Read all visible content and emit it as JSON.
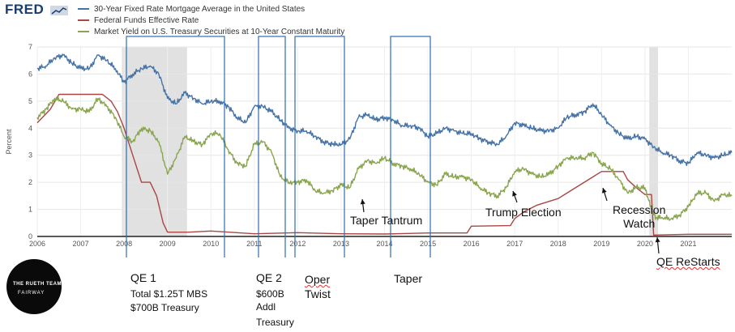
{
  "brand": {
    "name": "FRED"
  },
  "chart_data": {
    "type": "line",
    "xlim": [
      2006,
      2022
    ],
    "ylim": [
      0,
      7
    ],
    "ylabel": "Percent",
    "yticks": [
      0,
      1,
      2,
      3,
      4,
      5,
      6,
      7
    ],
    "xticks": [
      "2006",
      "2007",
      "2008",
      "2009",
      "2010",
      "2011",
      "2012",
      "2013",
      "2014",
      "2015",
      "2016",
      "2017",
      "2018",
      "2019",
      "2020",
      "2021"
    ],
    "recessions": [
      [
        2007.95,
        2009.45
      ],
      [
        2020.1,
        2020.3
      ]
    ],
    "series": [
      {
        "name": "30-Year Fixed Rate Mortgage Average in the United States",
        "color": "#4572a7",
        "x": [
          2006.0,
          2006.2,
          2006.4,
          2006.6,
          2006.8,
          2007.0,
          2007.2,
          2007.4,
          2007.6,
          2007.8,
          2008.0,
          2008.2,
          2008.4,
          2008.6,
          2008.8,
          2009.0,
          2009.2,
          2009.4,
          2009.6,
          2009.8,
          2010.0,
          2010.2,
          2010.4,
          2010.6,
          2010.8,
          2011.0,
          2011.2,
          2011.4,
          2011.6,
          2011.8,
          2012.0,
          2012.2,
          2012.4,
          2012.6,
          2012.8,
          2013.0,
          2013.2,
          2013.4,
          2013.6,
          2013.8,
          2014.0,
          2014.2,
          2014.4,
          2014.6,
          2014.8,
          2015.0,
          2015.2,
          2015.4,
          2015.6,
          2015.8,
          2016.0,
          2016.2,
          2016.4,
          2016.6,
          2016.8,
          2017.0,
          2017.2,
          2017.4,
          2017.6,
          2017.8,
          2018.0,
          2018.2,
          2018.4,
          2018.6,
          2018.8,
          2019.0,
          2019.2,
          2019.4,
          2019.6,
          2019.8,
          2020.0,
          2020.2,
          2020.4,
          2020.6,
          2020.8,
          2021.0,
          2021.2,
          2021.4,
          2021.6,
          2021.8,
          2022.0
        ],
        "y": [
          6.2,
          6.3,
          6.6,
          6.7,
          6.4,
          6.2,
          6.2,
          6.7,
          6.5,
          6.2,
          5.7,
          6.0,
          6.2,
          6.3,
          6.0,
          5.1,
          4.9,
          5.3,
          5.1,
          4.9,
          5.0,
          5.0,
          4.8,
          4.4,
          4.2,
          4.8,
          4.8,
          4.6,
          4.3,
          4.0,
          3.9,
          3.9,
          3.7,
          3.5,
          3.4,
          3.4,
          3.6,
          4.4,
          4.5,
          4.3,
          4.4,
          4.3,
          4.1,
          4.1,
          4.0,
          3.7,
          3.8,
          4.0,
          3.9,
          3.8,
          3.8,
          3.6,
          3.5,
          3.4,
          3.7,
          4.2,
          4.1,
          4.0,
          3.9,
          3.9,
          4.0,
          4.4,
          4.5,
          4.6,
          4.9,
          4.5,
          4.1,
          3.8,
          3.6,
          3.7,
          3.6,
          3.3,
          3.1,
          3.0,
          2.8,
          2.7,
          3.1,
          3.0,
          2.9,
          3.0,
          3.1
        ]
      },
      {
        "name": "Federal Funds Effective Rate",
        "color": "#aa4643",
        "x": [
          2006.0,
          2006.3,
          2006.5,
          2007.0,
          2007.5,
          2007.7,
          2007.85,
          2008.0,
          2008.2,
          2008.4,
          2008.6,
          2008.75,
          2008.9,
          2009.0,
          2009.5,
          2010.0,
          2011.0,
          2012.0,
          2013.0,
          2014.0,
          2015.0,
          2015.9,
          2016.0,
          2016.9,
          2017.0,
          2017.2,
          2017.5,
          2018.0,
          2018.2,
          2018.5,
          2018.8,
          2019.0,
          2019.5,
          2019.6,
          2019.8,
          2020.0,
          2020.15,
          2020.2,
          2021.0,
          2022.0
        ],
        "y": [
          4.2,
          4.7,
          5.25,
          5.25,
          5.25,
          5.0,
          4.6,
          4.0,
          3.0,
          2.0,
          2.0,
          1.5,
          0.5,
          0.16,
          0.16,
          0.2,
          0.1,
          0.14,
          0.1,
          0.09,
          0.13,
          0.13,
          0.38,
          0.4,
          0.66,
          0.9,
          1.15,
          1.4,
          1.6,
          1.9,
          2.2,
          2.4,
          2.4,
          2.1,
          1.8,
          1.55,
          1.55,
          0.05,
          0.08,
          0.08
        ]
      },
      {
        "name": "Market Yield on U.S. Treasury Securities at 10-Year Constant Maturity",
        "color": "#89a54e",
        "x": [
          2006.0,
          2006.2,
          2006.4,
          2006.6,
          2006.8,
          2007.0,
          2007.2,
          2007.4,
          2007.6,
          2007.8,
          2008.0,
          2008.2,
          2008.4,
          2008.6,
          2008.8,
          2009.0,
          2009.2,
          2009.4,
          2009.6,
          2009.8,
          2010.0,
          2010.2,
          2010.4,
          2010.6,
          2010.8,
          2011.0,
          2011.2,
          2011.4,
          2011.6,
          2011.8,
          2012.0,
          2012.2,
          2012.4,
          2012.6,
          2012.8,
          2013.0,
          2013.2,
          2013.4,
          2013.6,
          2013.8,
          2014.0,
          2014.2,
          2014.4,
          2014.6,
          2014.8,
          2015.0,
          2015.2,
          2015.4,
          2015.6,
          2015.8,
          2016.0,
          2016.2,
          2016.4,
          2016.6,
          2016.8,
          2017.0,
          2017.2,
          2017.4,
          2017.6,
          2017.8,
          2018.0,
          2018.2,
          2018.4,
          2018.6,
          2018.8,
          2019.0,
          2019.2,
          2019.4,
          2019.6,
          2019.8,
          2020.0,
          2020.15,
          2020.25,
          2020.4,
          2020.6,
          2020.8,
          2021.0,
          2021.2,
          2021.4,
          2021.6,
          2021.8,
          2022.0
        ],
        "y": [
          4.4,
          4.7,
          5.1,
          5.0,
          4.7,
          4.7,
          4.6,
          5.1,
          4.8,
          4.4,
          3.7,
          3.5,
          4.0,
          3.9,
          3.5,
          2.3,
          2.9,
          3.7,
          3.5,
          3.4,
          3.8,
          3.8,
          3.2,
          2.7,
          2.6,
          3.4,
          3.5,
          3.1,
          2.2,
          2.0,
          2.0,
          2.1,
          1.7,
          1.6,
          1.7,
          1.9,
          1.8,
          2.5,
          2.8,
          2.7,
          2.9,
          2.7,
          2.6,
          2.5,
          2.3,
          2.0,
          1.9,
          2.3,
          2.2,
          2.2,
          2.1,
          1.8,
          1.6,
          1.5,
          1.8,
          2.4,
          2.5,
          2.3,
          2.2,
          2.3,
          2.6,
          2.9,
          2.9,
          2.9,
          3.1,
          2.7,
          2.5,
          2.1,
          1.6,
          1.8,
          1.8,
          1.0,
          0.7,
          0.7,
          0.65,
          0.8,
          1.1,
          1.6,
          1.6,
          1.3,
          1.55,
          1.5
        ]
      }
    ]
  },
  "annotations": {
    "qe1_title": "QE 1",
    "qe1_line1": "Total $1.25T MBS",
    "qe1_line2": "$700B Treasury",
    "qe2_title": "QE 2",
    "qe2_line1": "$600B",
    "qe2_line2": "Addl",
    "qe2_line3": "Treasury",
    "oper_line1": "Oper",
    "oper_line2": "Twist",
    "taper": "Taper",
    "taper_tantrum": "Taper Tantrum",
    "trump_election": "Trump Election",
    "recession_line1": "Recession",
    "recession_line2": "Watch",
    "qe_restarts": "QE ReStarts"
  },
  "logo": {
    "line1": "THE RUETH TEAM",
    "line2": "FAIRWAY"
  }
}
